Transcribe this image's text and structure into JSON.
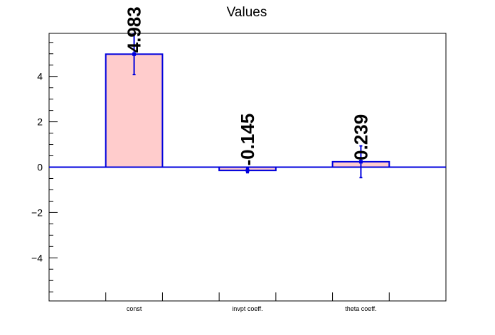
{
  "chart_data": {
    "type": "bar",
    "title": "Values",
    "xlabel": "",
    "ylabel": "",
    "categories": [
      "const",
      "invpt coeff.",
      "theta coeff."
    ],
    "values": [
      4.983,
      -0.145,
      0.239
    ],
    "errors": [
      0.9,
      0.1,
      0.7
    ],
    "data_labels": [
      "4.983",
      "-0.145",
      "0.239"
    ],
    "ylim": [
      -5.9,
      5.9
    ],
    "yticks": [
      -4,
      -2,
      0,
      2,
      4
    ],
    "ytick_labels": [
      "−4",
      "−2",
      "0",
      "2",
      "4"
    ],
    "grid": false,
    "legend": "none",
    "colors": {
      "bar_fill": "#ffcccc",
      "bar_edge": "#0000dd",
      "baseline": "#0000dd",
      "error_bar": "#0000dd",
      "axis": "#000000"
    }
  }
}
